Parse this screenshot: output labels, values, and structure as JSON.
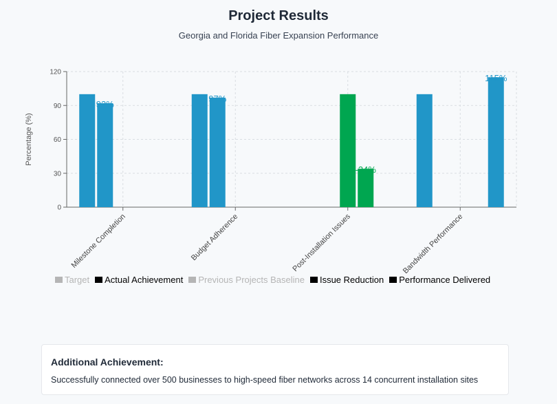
{
  "header": {
    "title": "Project Results",
    "subtitle": "Georgia and Florida Fiber Expansion Performance"
  },
  "chart_data": {
    "type": "bar",
    "ylabel": "Percentage (%)",
    "ylim": [
      0,
      120
    ],
    "yticks": [
      0,
      30,
      60,
      90,
      120
    ],
    "grid": true,
    "categories": [
      "Milestone Completion",
      "Budget Adherence",
      "Post-Installation Issues",
      "Bandwidth Performance"
    ],
    "series": [
      {
        "name": "Target",
        "values": [
          100,
          100,
          null,
          100
        ],
        "color": "#2196c8",
        "hidden": true
      },
      {
        "name": "Actual Achievement",
        "values": [
          92,
          97,
          null,
          null
        ],
        "color": "#2196c8",
        "hidden": false
      },
      {
        "name": "Previous Projects Baseline",
        "values": [
          null,
          null,
          100,
          null
        ],
        "color": "#00a650",
        "hidden": true
      },
      {
        "name": "Issue Reduction",
        "values": [
          null,
          null,
          34,
          null
        ],
        "color": "#00a650",
        "hidden": false
      },
      {
        "name": "Performance Delivered",
        "values": [
          null,
          null,
          null,
          115
        ],
        "color": "#2196c8",
        "hidden": false
      }
    ],
    "data_labels": [
      {
        "series": 1,
        "category": 0,
        "text": "92%",
        "color": "#2196c8"
      },
      {
        "series": 1,
        "category": 1,
        "text": "97%",
        "color": "#2196c8"
      },
      {
        "series": 3,
        "category": 2,
        "text": "-34%",
        "color": "#00a650"
      },
      {
        "series": 4,
        "category": 3,
        "text": "115%",
        "color": "#2196c8"
      }
    ],
    "legend_position": "bottom-left"
  },
  "note": {
    "title": "Additional Achievement:",
    "text": "Successfully connected over 500 businesses to high-speed fiber networks across 14 concurrent installation sites"
  }
}
